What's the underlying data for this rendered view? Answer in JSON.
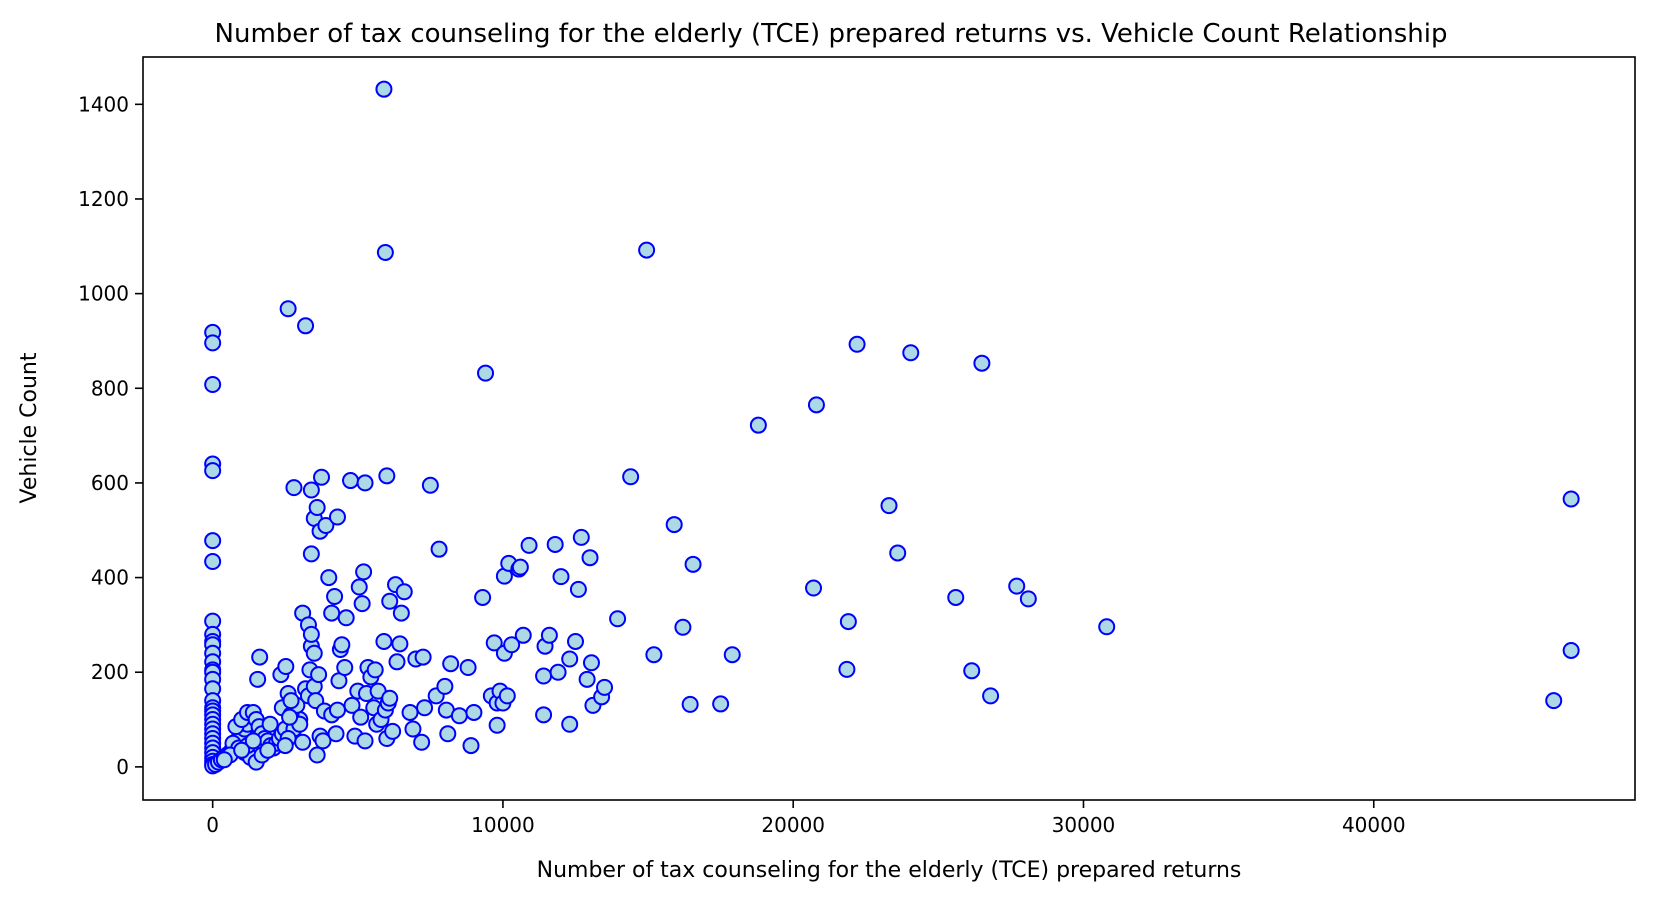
{
  "chart_data": {
    "type": "scatter",
    "title": "Number of tax counseling for the elderly (TCE) prepared returns vs. Vehicle Count Relationship",
    "xlabel": "Number of tax counseling for the elderly (TCE) prepared returns",
    "ylabel": "Vehicle Count",
    "xlim": [
      -2400,
      49000
    ],
    "ylim": [
      -70,
      1500
    ],
    "xticks": [
      0,
      10000,
      20000,
      30000,
      40000
    ],
    "xtick_labels": [
      "0",
      "10000",
      "20000",
      "30000",
      "40000"
    ],
    "yticks": [
      0,
      200,
      400,
      600,
      800,
      1000,
      1200,
      1400
    ],
    "ytick_labels": [
      "0",
      "200",
      "400",
      "600",
      "800",
      "1000",
      "1200",
      "1400"
    ],
    "grid": false,
    "marker": {
      "fill": "#add8e6",
      "edge": "#0000ff"
    },
    "points": [
      [
        0,
        918
      ],
      [
        0,
        896
      ],
      [
        0,
        808
      ],
      [
        0,
        640
      ],
      [
        0,
        626
      ],
      [
        0,
        478
      ],
      [
        0,
        434
      ],
      [
        0,
        308
      ],
      [
        0,
        280
      ],
      [
        0,
        265
      ],
      [
        0,
        258
      ],
      [
        0,
        240
      ],
      [
        0,
        222
      ],
      [
        0,
        205
      ],
      [
        0,
        200
      ],
      [
        0,
        185
      ],
      [
        0,
        165
      ],
      [
        0,
        140
      ],
      [
        0,
        125
      ],
      [
        0,
        118
      ],
      [
        0,
        110
      ],
      [
        0,
        100
      ],
      [
        0,
        90
      ],
      [
        0,
        80
      ],
      [
        0,
        70
      ],
      [
        0,
        60
      ],
      [
        0,
        50
      ],
      [
        0,
        40
      ],
      [
        0,
        30
      ],
      [
        0,
        20
      ],
      [
        0,
        12
      ],
      [
        0,
        5
      ],
      [
        0,
        2
      ],
      [
        100,
        5
      ],
      [
        200,
        10
      ],
      [
        300,
        15
      ],
      [
        400,
        20
      ],
      [
        500,
        25
      ],
      [
        600,
        30
      ],
      [
        700,
        40
      ],
      [
        800,
        45
      ],
      [
        900,
        60
      ],
      [
        1000,
        70
      ],
      [
        1100,
        80
      ],
      [
        1200,
        90
      ],
      [
        800,
        85
      ],
      [
        1000,
        100
      ],
      [
        1200,
        115
      ],
      [
        1400,
        115
      ],
      [
        1500,
        100
      ],
      [
        1600,
        85
      ],
      [
        1700,
        70
      ],
      [
        1800,
        60
      ],
      [
        1900,
        55
      ],
      [
        2000,
        45
      ],
      [
        2100,
        40
      ],
      [
        2200,
        50
      ],
      [
        2300,
        60
      ],
      [
        2400,
        70
      ],
      [
        2500,
        80
      ],
      [
        700,
        50
      ],
      [
        900,
        40
      ],
      [
        1100,
        30
      ],
      [
        1300,
        20
      ],
      [
        1500,
        10
      ],
      [
        1700,
        25
      ],
      [
        1900,
        35
      ],
      [
        600,
        25
      ],
      [
        400,
        15
      ],
      [
        1200,
        45
      ],
      [
        1400,
        55
      ],
      [
        1000,
        35
      ],
      [
        3000,
        100
      ],
      [
        2800,
        80
      ],
      [
        2600,
        60
      ],
      [
        2500,
        45
      ],
      [
        3100,
        52
      ],
      [
        2400,
        125
      ],
      [
        2700,
        110
      ],
      [
        2900,
        130
      ],
      [
        3200,
        165
      ],
      [
        3300,
        150
      ],
      [
        2600,
        155
      ],
      [
        2700,
        140
      ],
      [
        3000,
        90
      ],
      [
        1550,
        185
      ],
      [
        1620,
        232
      ],
      [
        1980,
        90
      ],
      [
        2350,
        195
      ],
      [
        2520,
        212
      ],
      [
        2650,
        105
      ],
      [
        2800,
        590
      ],
      [
        3200,
        932
      ],
      [
        2600,
        968
      ],
      [
        3400,
        585
      ],
      [
        3400,
        450
      ],
      [
        3500,
        525
      ],
      [
        3600,
        548
      ],
      [
        3700,
        498
      ],
      [
        3750,
        612
      ],
      [
        3900,
        510
      ],
      [
        4000,
        400
      ],
      [
        4100,
        325
      ],
      [
        4200,
        360
      ],
      [
        4300,
        528
      ],
      [
        3100,
        325
      ],
      [
        3300,
        300
      ],
      [
        3400,
        255
      ],
      [
        3500,
        240
      ],
      [
        3400,
        280
      ],
      [
        3350,
        205
      ],
      [
        3500,
        170
      ],
      [
        3550,
        140
      ],
      [
        3650,
        195
      ],
      [
        3700,
        65
      ],
      [
        3800,
        55
      ],
      [
        3600,
        25
      ],
      [
        3850,
        118
      ],
      [
        4100,
        110
      ],
      [
        4250,
        70
      ],
      [
        4300,
        120
      ],
      [
        4350,
        182
      ],
      [
        4400,
        248
      ],
      [
        4450,
        258
      ],
      [
        4550,
        210
      ],
      [
        4600,
        315
      ],
      [
        4750,
        605
      ],
      [
        5250,
        600
      ],
      [
        4800,
        130
      ],
      [
        4900,
        65
      ],
      [
        5000,
        160
      ],
      [
        5100,
        105
      ],
      [
        5200,
        412
      ],
      [
        5300,
        155
      ],
      [
        5350,
        210
      ],
      [
        5250,
        55
      ],
      [
        5450,
        190
      ],
      [
        5550,
        125
      ],
      [
        5650,
        90
      ],
      [
        5700,
        160
      ],
      [
        5800,
        100
      ],
      [
        5900,
        265
      ],
      [
        5950,
        120
      ],
      [
        6000,
        60
      ],
      [
        6050,
        135
      ],
      [
        6100,
        145
      ],
      [
        6100,
        350
      ],
      [
        6200,
        75
      ],
      [
        6300,
        385
      ],
      [
        6350,
        222
      ],
      [
        6450,
        260
      ],
      [
        6500,
        325
      ],
      [
        6600,
        370
      ],
      [
        5050,
        380
      ],
      [
        5150,
        345
      ],
      [
        5600,
        205
      ],
      [
        5900,
        1432
      ],
      [
        5950,
        1087
      ],
      [
        6000,
        615
      ],
      [
        6800,
        115
      ],
      [
        6900,
        80
      ],
      [
        7000,
        228
      ],
      [
        7200,
        52
      ],
      [
        7250,
        232
      ],
      [
        7300,
        125
      ],
      [
        7500,
        595
      ],
      [
        7700,
        150
      ],
      [
        7800,
        460
      ],
      [
        8000,
        170
      ],
      [
        8050,
        120
      ],
      [
        8100,
        70
      ],
      [
        8200,
        218
      ],
      [
        8500,
        108
      ],
      [
        8800,
        210
      ],
      [
        8900,
        45
      ],
      [
        9000,
        115
      ],
      [
        9300,
        358
      ],
      [
        9400,
        832
      ],
      [
        9600,
        150
      ],
      [
        9700,
        262
      ],
      [
        9800,
        88
      ],
      [
        9800,
        135
      ],
      [
        9900,
        160
      ],
      [
        10000,
        135
      ],
      [
        10050,
        240
      ],
      [
        10050,
        403
      ],
      [
        10150,
        150
      ],
      [
        10200,
        430
      ],
      [
        10300,
        258
      ],
      [
        10550,
        418
      ],
      [
        10600,
        422
      ],
      [
        10700,
        278
      ],
      [
        10900,
        468
      ],
      [
        11400,
        110
      ],
      [
        11400,
        192
      ],
      [
        11450,
        255
      ],
      [
        11600,
        278
      ],
      [
        11800,
        470
      ],
      [
        11900,
        200
      ],
      [
        12000,
        402
      ],
      [
        12300,
        90
      ],
      [
        12300,
        228
      ],
      [
        12500,
        265
      ],
      [
        12600,
        375
      ],
      [
        12700,
        485
      ],
      [
        12900,
        185
      ],
      [
        13000,
        442
      ],
      [
        13050,
        220
      ],
      [
        13100,
        130
      ],
      [
        13400,
        148
      ],
      [
        13500,
        168
      ],
      [
        13950,
        313
      ],
      [
        14400,
        613
      ],
      [
        14950,
        1092
      ],
      [
        15200,
        237
      ],
      [
        15900,
        512
      ],
      [
        16200,
        295
      ],
      [
        16450,
        132
      ],
      [
        16550,
        428
      ],
      [
        17500,
        133
      ],
      [
        17900,
        237
      ],
      [
        18800,
        722
      ],
      [
        20700,
        378
      ],
      [
        20800,
        765
      ],
      [
        21850,
        206
      ],
      [
        21900,
        307
      ],
      [
        22200,
        893
      ],
      [
        23300,
        552
      ],
      [
        23600,
        452
      ],
      [
        24050,
        875
      ],
      [
        25600,
        358
      ],
      [
        26150,
        203
      ],
      [
        26500,
        853
      ],
      [
        26800,
        150
      ],
      [
        27700,
        382
      ],
      [
        28100,
        355
      ],
      [
        30800,
        296
      ],
      [
        46200,
        140
      ],
      [
        46800,
        566
      ],
      [
        46800,
        246
      ]
    ]
  }
}
